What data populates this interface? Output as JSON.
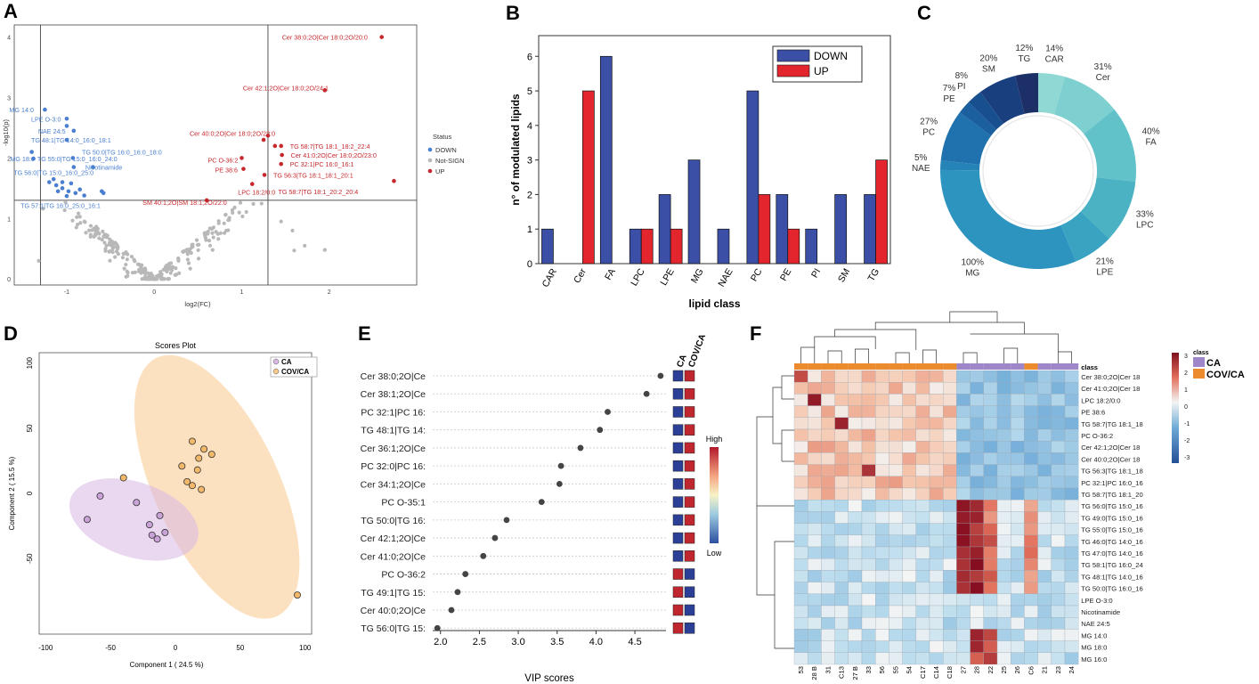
{
  "colors": {
    "down": "#3a4fa5",
    "up": "#e3262d",
    "volcano_down": "#4a7fd0",
    "volcano_up": "#c6272c",
    "volcano_ns": "#b8b8b8",
    "ca": "#d9b8e6",
    "cov": "#f7c98a"
  },
  "chart_data": [
    {
      "panel": "A",
      "type": "scatter",
      "title": "",
      "xlabel": "log2(FC)",
      "ylabel": "-log10(p)",
      "xlim": [
        -1.6,
        3.0
      ],
      "ylim": [
        -0.1,
        4.2
      ],
      "xticks": [
        "-1",
        "0",
        "1",
        "2"
      ],
      "yticks": [
        "0",
        "1",
        "2",
        "3",
        "4"
      ],
      "legend": {
        "title": "Status",
        "items": [
          "DOWN",
          "Not-SIGN",
          "UP"
        ]
      },
      "thresholds": {
        "x": [
          -1.3,
          1.3
        ],
        "y": 1.3
      },
      "labels_down": [
        {
          "text": "MG 14:0",
          "x": -1.25,
          "y": 2.8
        },
        {
          "text": "LPE O-3:0",
          "x": -1.0,
          "y": 2.65
        },
        {
          "text": "NAE 24:5",
          "x": -0.92,
          "y": 2.45
        },
        {
          "text": "TG 48:1|TG 14:0_16:0_18:1",
          "x": -1.0,
          "y": 2.3
        },
        {
          "text": "TG 50:0|TG 16:0_16:0_18:0",
          "x": -0.42,
          "y": 2.1
        },
        {
          "text": "MG 18:0",
          "x": -1.24,
          "y": 1.99
        },
        {
          "text": "TG 55:0|TG 15:0_16:0_24:0",
          "x": -0.93,
          "y": 1.99
        },
        {
          "text": "Nicotinamide",
          "x": -0.38,
          "y": 1.85
        },
        {
          "text": "TG 56:0|TG 15:0_16:0_25:0",
          "x": -1.2,
          "y": 1.76
        },
        {
          "text": "TG 57:1|TG 16:0_25:0_16:1",
          "x": -1.12,
          "y": 1.22
        }
      ],
      "labels_up": [
        {
          "text": "Cer 38:0;2O|Cer 18:0;2O/20:0",
          "x": 2.6,
          "y": 4.0
        },
        {
          "text": "Cer 42:1;2O|Cer 18:0;2O/24:1",
          "x": 1.95,
          "y": 3.12
        },
        {
          "text": "Cer 40:0;2O|Cer 18:0;2O/22:0",
          "x": 1.3,
          "y": 2.37
        },
        {
          "text": "TG 58:7|TG 18:1_18:2_22:4",
          "x": 1.45,
          "y": 2.2
        },
        {
          "text": "Cer 41:0;2O|Cer 18:0;2O/23:0",
          "x": 1.46,
          "y": 2.05
        },
        {
          "text": "PC O-36:2",
          "x": 1.0,
          "y": 2.0
        },
        {
          "text": "PC 32:1|PC 16:0_16:1",
          "x": 1.45,
          "y": 1.9
        },
        {
          "text": "PE 38:6",
          "x": 1.02,
          "y": 1.82
        },
        {
          "text": "TG 56:3|TG 18:1_18:1_20:1",
          "x": 1.26,
          "y": 1.72
        },
        {
          "text": "TG 58:7|TG 18:1_20:2_20:4",
          "x": 2.74,
          "y": 1.62
        },
        {
          "text": "LPC 18:2/0:0",
          "x": 1.12,
          "y": 1.57
        },
        {
          "text": "SM 40:1;2O|SM 18:1;2O/22:0",
          "x": 0.6,
          "y": 1.3
        }
      ]
    },
    {
      "panel": "B",
      "type": "bar",
      "title": "",
      "xlabel": "lipid class",
      "ylabel": "n° of modulated lipids",
      "ylim": [
        0,
        6.6
      ],
      "yticks": [
        "0",
        "1",
        "2",
        "3",
        "4",
        "5",
        "6"
      ],
      "categories": [
        "CAR",
        "Cer",
        "FA",
        "LPC",
        "LPE",
        "MG",
        "NAE",
        "PC",
        "PE",
        "PI",
        "SM",
        "TG"
      ],
      "series": [
        {
          "name": "DOWN",
          "values": [
            1,
            0,
            6,
            1,
            2,
            3,
            1,
            5,
            2,
            1,
            2,
            2
          ]
        },
        {
          "name": "UP",
          "values": [
            0,
            5,
            0,
            1,
            1,
            0,
            0,
            2,
            1,
            0,
            0,
            3
          ]
        }
      ],
      "legend": [
        "DOWN",
        "UP"
      ]
    },
    {
      "panel": "C",
      "type": "pie",
      "title": "",
      "slices": [
        {
          "label": "CAR",
          "pct": "14%",
          "weight": 14,
          "color": "#8fd8d4"
        },
        {
          "label": "Cer",
          "pct": "31%",
          "weight": 31,
          "color": "#7dcfd0"
        },
        {
          "label": "FA",
          "pct": "40%",
          "weight": 40,
          "color": "#62c2c9"
        },
        {
          "label": "LPC",
          "pct": "33%",
          "weight": 33,
          "color": "#4bb2c4"
        },
        {
          "label": "LPE",
          "pct": "21%",
          "weight": 21,
          "color": "#3aa3c1"
        },
        {
          "label": "MG",
          "pct": "100%",
          "weight": 100,
          "color": "#2d94c0"
        },
        {
          "label": "NAE",
          "pct": "5%",
          "weight": 5,
          "color": "#2683b8"
        },
        {
          "label": "PC",
          "pct": "27%",
          "weight": 27,
          "color": "#1f72ad"
        },
        {
          "label": "PE",
          "pct": "7%",
          "weight": 7,
          "color": "#1b5f9f"
        },
        {
          "label": "PI",
          "pct": "8%",
          "weight": 8,
          "color": "#184f8f"
        },
        {
          "label": "SM",
          "pct": "20%",
          "weight": 20,
          "color": "#1a3f7e"
        },
        {
          "label": "TG",
          "pct": "12%",
          "weight": 12,
          "color": "#1c2f66"
        }
      ]
    },
    {
      "panel": "D",
      "type": "scatter",
      "title": "Scores Plot",
      "xlabel": "Component 1 ( 24.5 %)",
      "ylabel": "Component 2 ( 15.5 %)",
      "xlim": [
        -105,
        105
      ],
      "ylim": [
        -108,
        108
      ],
      "xticks": [
        -100,
        -50,
        0,
        50,
        100
      ],
      "yticks": [
        -50,
        0,
        50,
        100
      ],
      "legend": [
        "CA",
        "COV/CA"
      ],
      "series": [
        {
          "name": "CA",
          "color": "#c9a2d8",
          "points": [
            [
              -58,
              -2
            ],
            [
              -30,
              -7
            ],
            [
              -12,
              -17
            ],
            [
              -68,
              -20
            ],
            [
              -20,
              -24
            ],
            [
              -8,
              -30
            ],
            [
              -18,
              -32
            ],
            [
              -14,
              -35
            ]
          ]
        },
        {
          "name": "COV/CA",
          "color": "#f2b86a",
          "points": [
            [
              13,
              40
            ],
            [
              22,
              34
            ],
            [
              28,
              30
            ],
            [
              18,
              27
            ],
            [
              5,
              21
            ],
            [
              17,
              18
            ],
            [
              -40,
              12
            ],
            [
              9,
              9
            ],
            [
              13,
              6
            ],
            [
              20,
              3
            ],
            [
              94,
              -78
            ]
          ]
        }
      ]
    },
    {
      "panel": "E",
      "type": "scatter",
      "title": "",
      "xlabel": "VIP scores",
      "xlim": [
        1.9,
        4.9
      ],
      "xticks": [
        "2.0",
        "2.5",
        "3.0",
        "3.5",
        "4.0",
        "4.5"
      ],
      "features": [
        "Cer 38:0;2O|Ce",
        "Cer 38:1;2O|Ce",
        "PC 32:1|PC 16:",
        "TG 48:1|TG 14:",
        "Cer 36:1;2O|Ce",
        "PC 32:0|PC 16:",
        "Cer 34:1;2O|Ce",
        "PC O-35:1",
        "TG 50:0|TG 16:",
        "Cer 42:1;2O|Ce",
        "Cer 41:0;2O|Ce",
        "PC O-36:2",
        "TG 49:1|TG 15:",
        "Cer 40:0;2O|Ce",
        "TG 56:0|TG 15:"
      ],
      "values": [
        4.83,
        4.65,
        4.15,
        4.05,
        3.8,
        3.55,
        3.53,
        3.3,
        2.85,
        2.7,
        2.55,
        2.32,
        2.22,
        2.14,
        1.96
      ],
      "columns": [
        "CA",
        "COV/CA"
      ],
      "colorbar": [
        "High",
        "Low"
      ]
    },
    {
      "panel": "F",
      "type": "heatmap",
      "title": "",
      "class_label": "class",
      "legend": [
        "CA",
        "COV/CA"
      ],
      "colorbar_ticks": [
        "3",
        "2",
        "1",
        "0",
        "-1",
        "-2",
        "-3"
      ],
      "columns": [
        "53",
        "28 B",
        "31",
        "C13",
        "27 B",
        "33",
        "56",
        "55",
        "54",
        "C17",
        "C14",
        "C18",
        "27",
        "28",
        "22",
        "25",
        "26",
        "C6",
        "21",
        "23",
        "24"
      ],
      "rows": [
        "Cer 38:0;2O|Cer 18",
        "Cer 41:0;2O|Cer 18",
        "LPC 18:2/0:0",
        "PE 38:6",
        "TG 58:7|TG 18:1_18",
        "PC O-36:2",
        "Cer 42:1;2O|Cer 18",
        "Cer 40:0;2O|Cer 18",
        "TG 56:3|TG 18:1_18",
        "PC 32:1|PC 16:0_16",
        "TG 58:7|TG 18:1_20",
        "TG 56:0|TG 15:0_16",
        "TG 49:0|TG 15:0_16",
        "TG 55:0|TG 15:0_16",
        "TG 46:0|TG 14:0_16",
        "TG 47:0|TG 14:0_16",
        "TG 58:1|TG 16:0_24",
        "TG 48:1|TG 14:0_16",
        "TG 50:0|TG 16:0_16",
        "LPE O-3:0",
        "Nicotinamide",
        "NAE 24:5",
        "MG 14:0",
        "MG 18:0",
        "MG 16:0"
      ]
    }
  ],
  "panels": {
    "a": "A",
    "b": "B",
    "c": "C",
    "d": "D",
    "e": "E",
    "f": "F"
  },
  "panel_d_small": {
    "ca": "CA",
    "cov": "COV/CA"
  }
}
